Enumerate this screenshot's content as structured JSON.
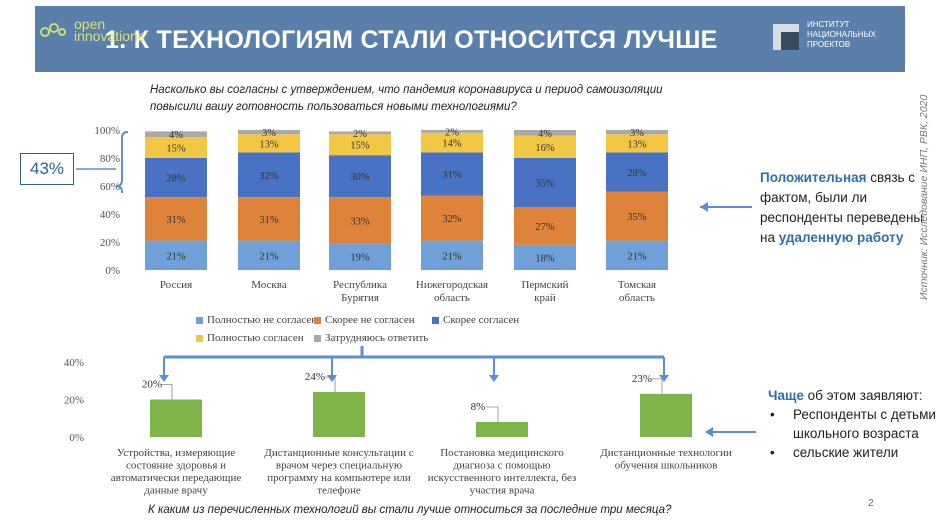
{
  "header": {
    "title": "1. К ТЕХНОЛОГИЯМ СТАЛИ ОТНОСИТСЯ ЛУЧШЕ",
    "overlay_logo_line1": "open",
    "overlay_logo_line2": "innovations",
    "institute_logo": [
      "ИНСТИТУТ",
      "НАЦИОНАЛЬНЫХ",
      "ПРОЕКТОВ"
    ]
  },
  "question_top": "Насколько вы согласны с утверждением, что пандемия коронавируса и период самоизоляции повысили вашу готовность пользоваться новыми технологиями?",
  "question_bottom": "К каким из перечисленных технологий вы стали лучше относиться за последние три месяца?",
  "badge": "43%",
  "right_note": {
    "part1_highlight": "Положительная",
    "part2": " связь с фактом, были ли респонденты переведены на ",
    "part3_highlight": "удаленную работу"
  },
  "right_list": {
    "intro_highlight": "Чаще",
    "intro_rest": " об этом заявляют:",
    "items": [
      "Респонденты с детьми школьного возраста",
      "сельские жители"
    ]
  },
  "source": "Источник: Исследование ИНП, РВК, 2020",
  "page_number": "2",
  "colors": {
    "header": "#5a7fab",
    "s1": "#6fa0d8",
    "s2": "#e0833a",
    "s3": "#4a72c4",
    "s4": "#f2c744",
    "s5": "#a9a9a9",
    "bar2": "#7fb548",
    "arrow": "#5b8fd4",
    "accent": "#2f6fb0"
  },
  "chart_data": [
    {
      "type": "bar",
      "stacked": true,
      "categories": [
        "Россия",
        "Москва",
        "Республика Бурятия",
        "Нижегородская область",
        "Пермский край",
        "Томская область"
      ],
      "series": [
        {
          "name": "Полностью не согласен",
          "values": [
            21,
            21,
            19,
            21,
            18,
            21
          ]
        },
        {
          "name": "Скорее не согласен",
          "values": [
            31,
            31,
            33,
            32,
            27,
            35
          ]
        },
        {
          "name": "Скорее согласен",
          "values": [
            28,
            32,
            30,
            31,
            35,
            28
          ]
        },
        {
          "name": "Полностью согласен",
          "values": [
            15,
            13,
            15,
            14,
            16,
            13
          ]
        },
        {
          "name": "Затрудняюсь ответить",
          "values": [
            4,
            3,
            2,
            2,
            4,
            3
          ]
        }
      ],
      "yticks": [
        "0%",
        "20%",
        "40%",
        "60%",
        "80%",
        "100%"
      ],
      "ylim": [
        0,
        100
      ],
      "legend_position": "bottom"
    },
    {
      "type": "bar",
      "categories": [
        "Устройства, измеряющие состояние здоровья и автоматически передающие данные врачу",
        "Дистанционные консультации с врачом через специальную программу на компьютере или телефоне",
        "Постановка медицинского диагноза с помощью искусственного интеллекта, без участия врача",
        "Дистанционные технологии обучения школьников"
      ],
      "values": [
        20,
        24,
        8,
        23
      ],
      "value_labels": [
        "20%",
        "24%",
        "8%",
        "23%"
      ],
      "yticks": [
        "0%",
        "20%",
        "40%"
      ],
      "ylim": [
        0,
        40
      ]
    }
  ]
}
